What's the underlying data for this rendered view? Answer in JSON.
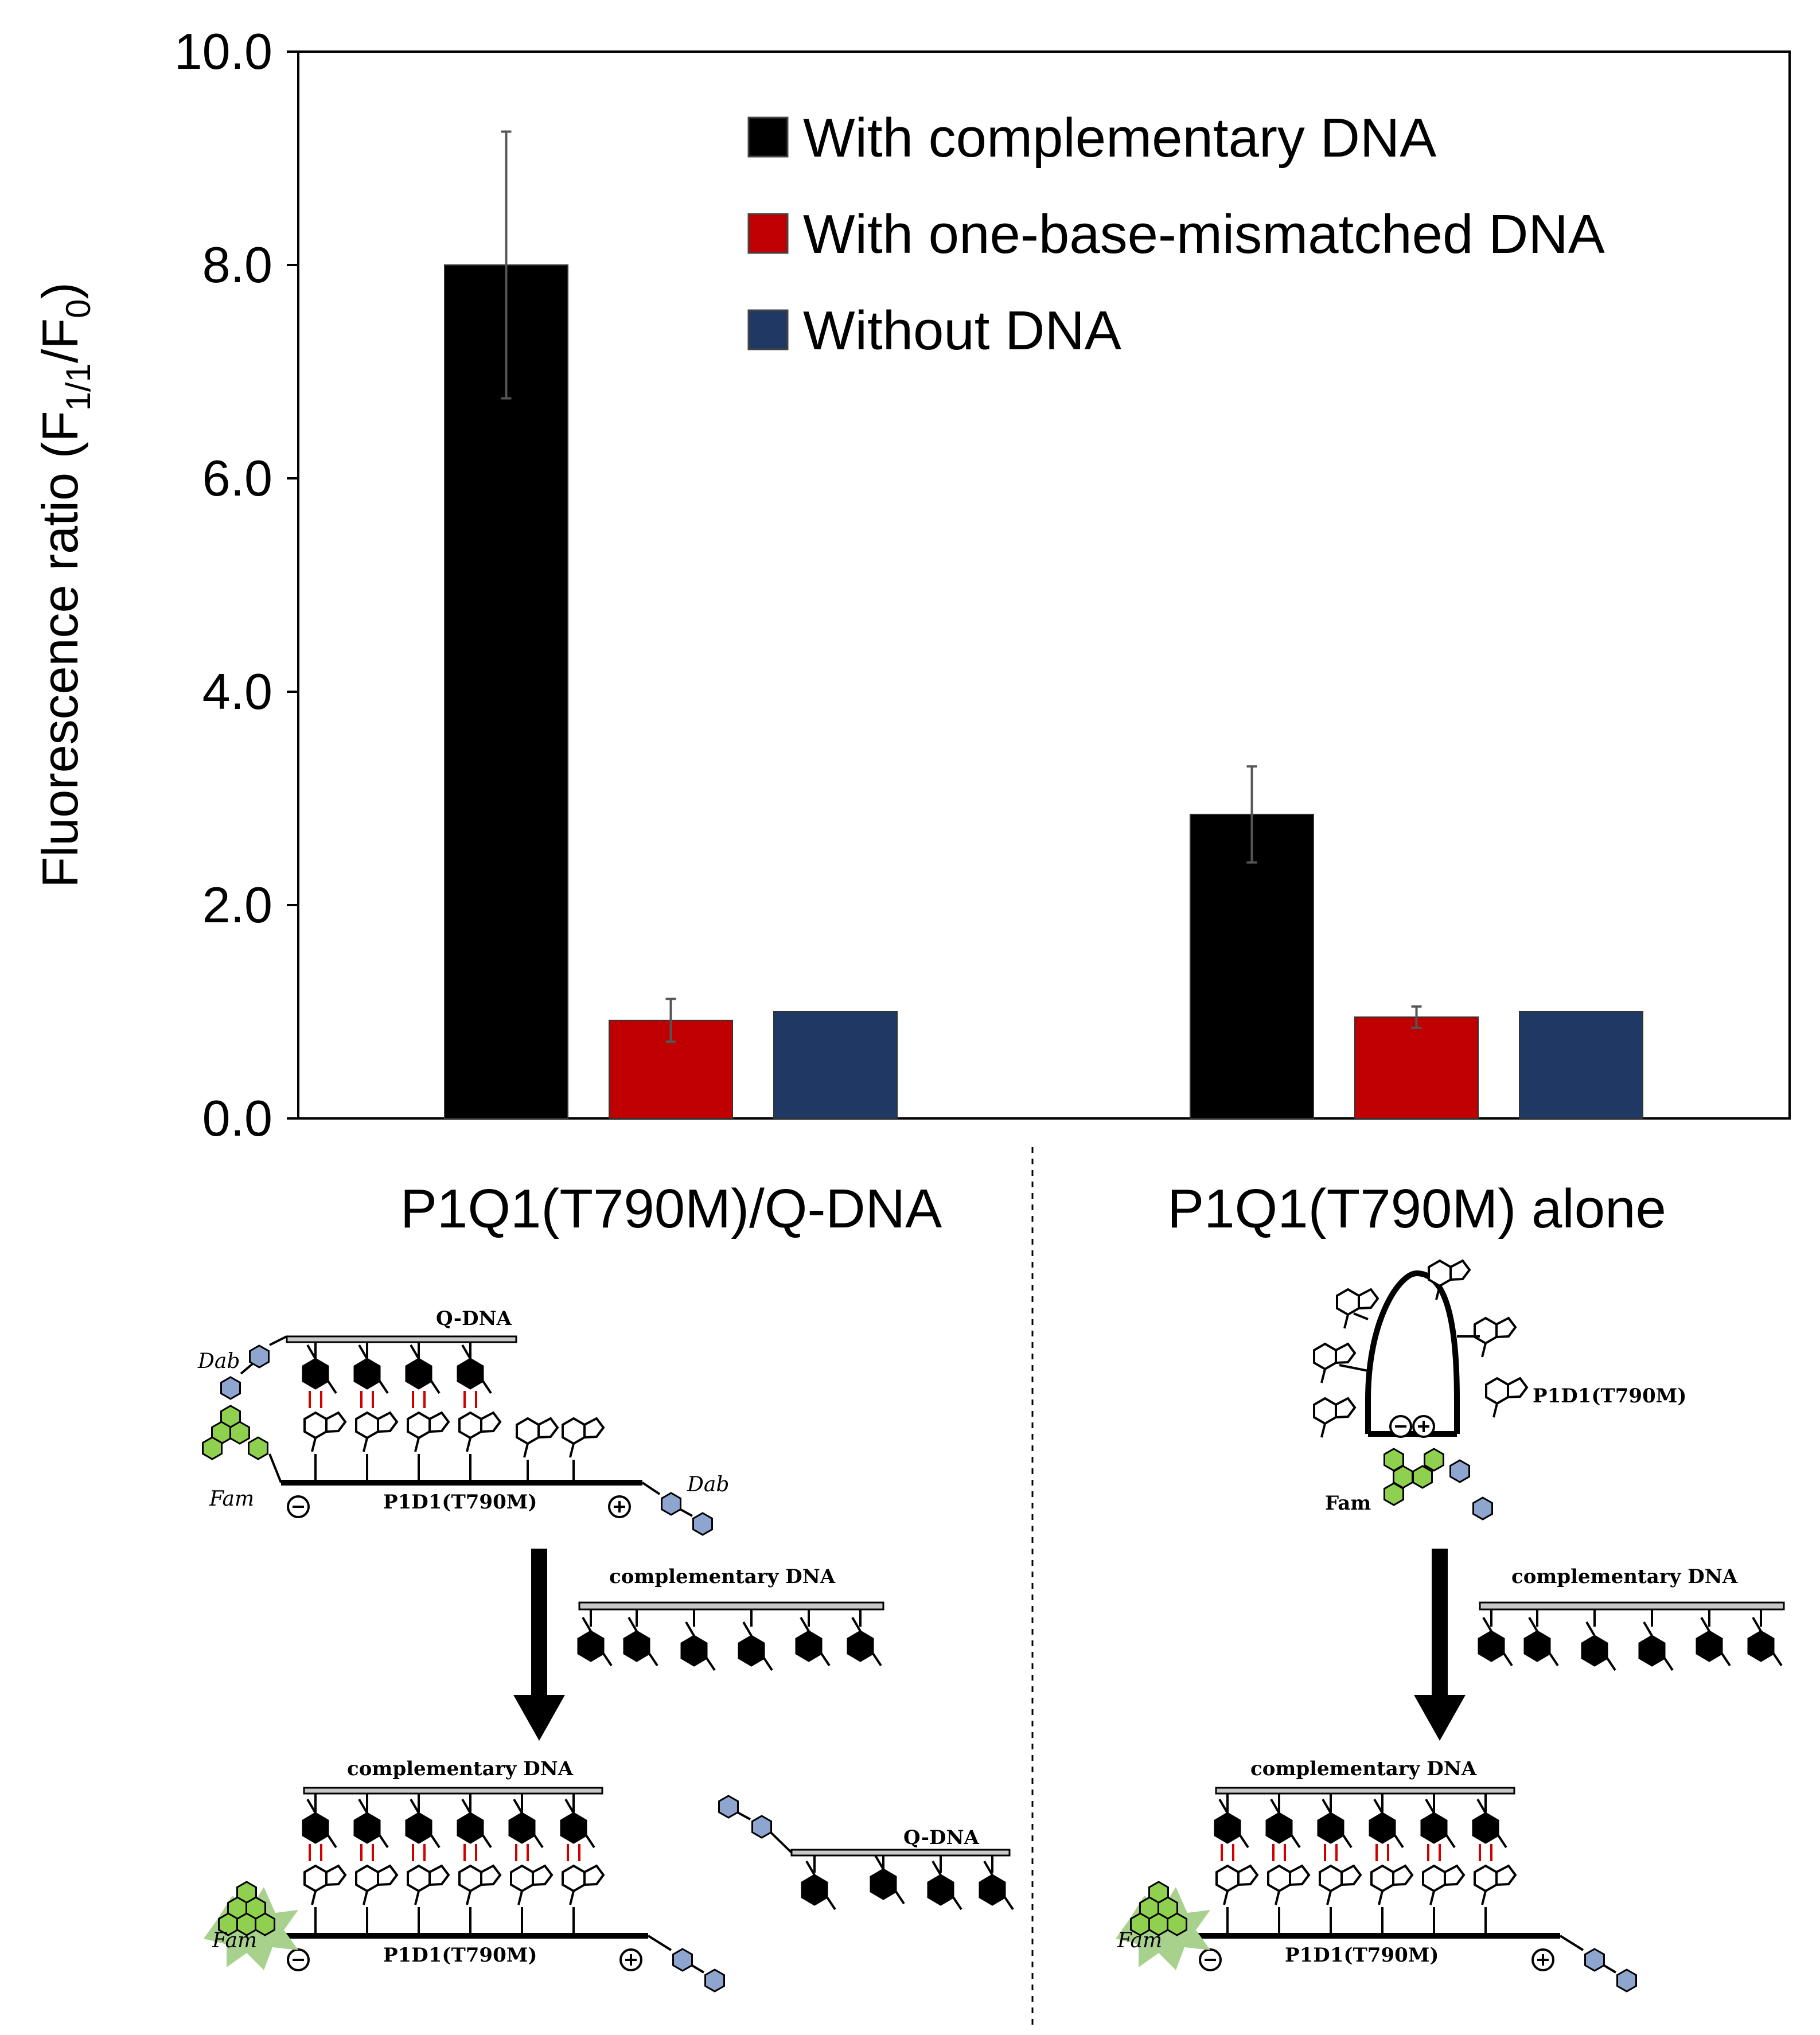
{
  "chart_data": {
    "type": "bar",
    "ylabel": "Fluorescence ratio (F",
    "ylabel_sub1": "1/1",
    "ylabel_mid": "/F",
    "ylabel_sub2": "0",
    "ylabel_end": ")",
    "ylim": [
      0,
      10
    ],
    "yticks": [
      "0.0",
      "2.0",
      "4.0",
      "6.0",
      "8.0",
      "10.0"
    ],
    "categories": [
      "P1Q1(T790M)/Q-DNA",
      "P1Q1(T790M) alone"
    ],
    "series": [
      {
        "name": "With complementary DNA",
        "color": "#000000",
        "values": [
          8.0,
          2.85
        ],
        "errors": [
          1.25,
          0.45
        ]
      },
      {
        "name": "With one-base-mismatched DNA",
        "color": "#c00000",
        "values": [
          0.92,
          0.95
        ],
        "errors": [
          0.2,
          0.1
        ]
      },
      {
        "name": "Without DNA",
        "color": "#1f3864",
        "values": [
          1.0,
          1.0
        ],
        "errors": [
          0,
          0
        ]
      }
    ],
    "legend_position": "top-right",
    "grid": false
  },
  "schematic": {
    "left": {
      "q_dna": "Q-DNA",
      "dab1": "Dab",
      "dab2": "Dab",
      "fam": "Fam",
      "p1d1": "P1D1(T790M)",
      "comp": "complementary DNA",
      "comp_bottom": "complementary DNA",
      "q_dna_released": "Q-DNA",
      "fam_bottom": "Fam",
      "p1d1_bottom": "P1D1(T790M)"
    },
    "right": {
      "p1d1": "P1D1(T790M)",
      "fam": "Fam",
      "comp": "complementary DNA",
      "comp_bottom": "complementary DNA",
      "fam_bottom": "Fam",
      "p1d1_bottom": "P1D1(T790M)"
    }
  }
}
